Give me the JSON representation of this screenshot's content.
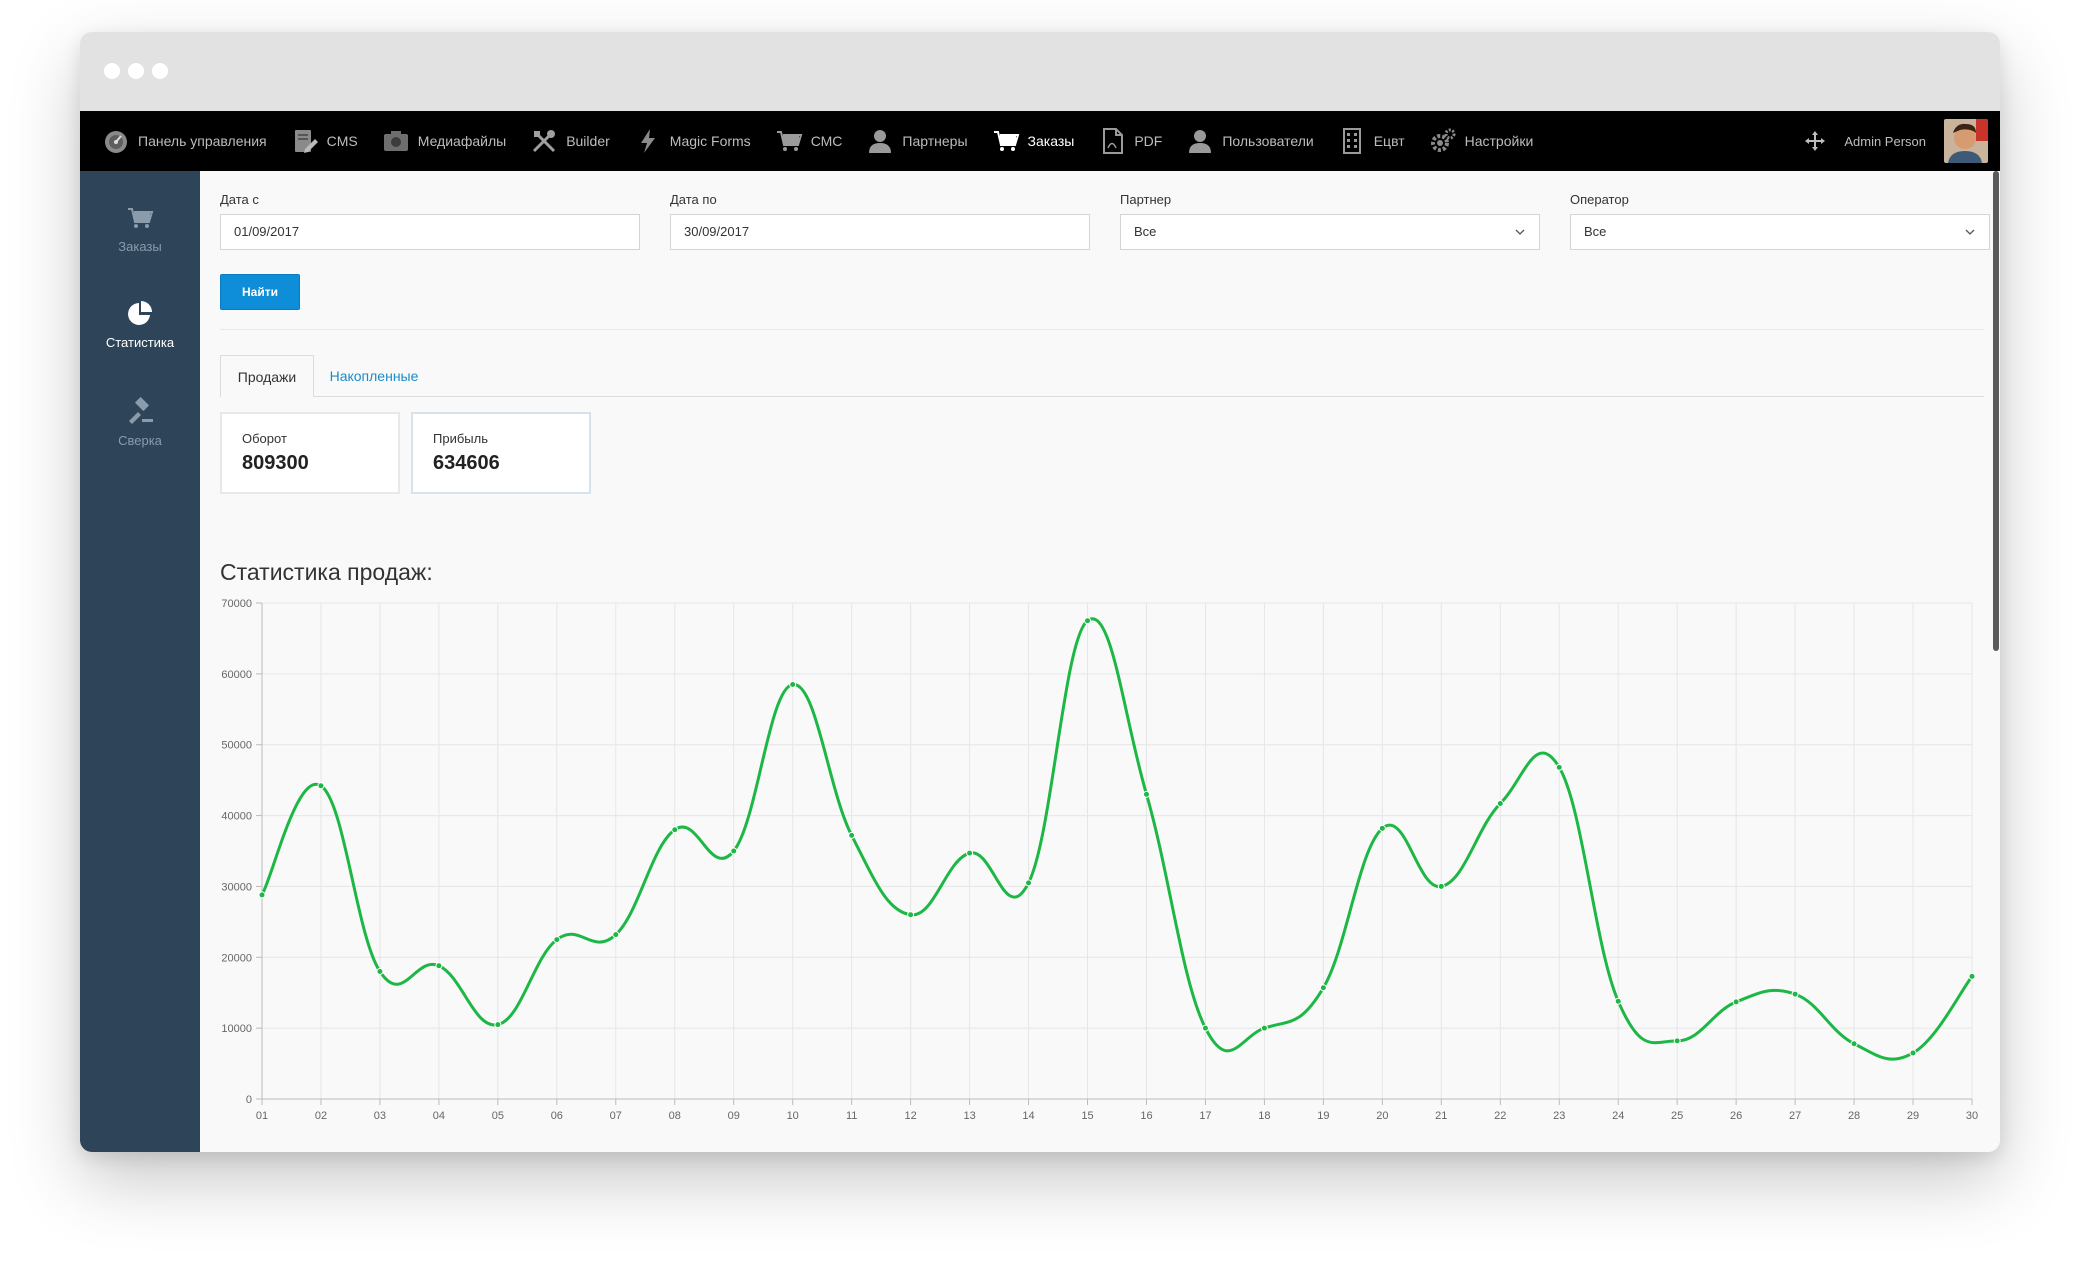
{
  "nav": {
    "items": [
      {
        "label": "Панель управления",
        "icon": "dashboard-gauge-icon",
        "active": false
      },
      {
        "label": "CMS",
        "icon": "cms-edit-icon",
        "active": false
      },
      {
        "label": "Медиафайлы",
        "icon": "media-camera-icon",
        "active": false
      },
      {
        "label": "Builder",
        "icon": "builder-tools-icon",
        "active": false
      },
      {
        "label": "Magic Forms",
        "icon": "lightning-icon",
        "active": false
      },
      {
        "label": "СМС",
        "icon": "cart-icon",
        "active": false
      },
      {
        "label": "Партнеры",
        "icon": "user-icon",
        "active": false
      },
      {
        "label": "Заказы",
        "icon": "cart-icon",
        "active": true
      },
      {
        "label": "PDF",
        "icon": "pdf-file-icon",
        "active": false
      },
      {
        "label": "Пользователи",
        "icon": "user-icon",
        "active": false
      },
      {
        "label": "Ецвт",
        "icon": "building-icon",
        "active": false
      },
      {
        "label": "Настройки",
        "icon": "gears-icon",
        "active": false
      }
    ],
    "user_name": "Admin Person"
  },
  "sidebar": {
    "items": [
      {
        "label": "Заказы",
        "icon": "cart-icon",
        "active": false
      },
      {
        "label": "Статистика",
        "icon": "pie-chart-icon",
        "active": true
      },
      {
        "label": "Сверка",
        "icon": "gavel-icon",
        "active": false
      }
    ]
  },
  "filters": {
    "date_from_label": "Дата с",
    "date_from_value": "01/09/2017",
    "date_to_label": "Дата по",
    "date_to_value": "30/09/2017",
    "partner_label": "Партнер",
    "partner_value": "Все",
    "operator_label": "Оператор",
    "operator_value": "Все",
    "find_button": "Найти"
  },
  "tabs": [
    {
      "label": "Продажи",
      "active": true
    },
    {
      "label": "Накопленные",
      "active": false
    }
  ],
  "stats": {
    "turnover_label": "Оборот",
    "turnover_value": "809300",
    "profit_label": "Прибыль",
    "profit_value": "634606"
  },
  "chart_title": "Статистика продаж:",
  "chart_data": {
    "type": "line",
    "categories": [
      "01",
      "02",
      "03",
      "04",
      "05",
      "06",
      "07",
      "08",
      "09",
      "10",
      "11",
      "12",
      "13",
      "14",
      "15",
      "16",
      "17",
      "18",
      "19",
      "20",
      "21",
      "22",
      "23",
      "24",
      "25",
      "26",
      "27",
      "28",
      "29",
      "30"
    ],
    "values": [
      28800,
      44200,
      18000,
      18800,
      10500,
      22500,
      23200,
      38000,
      35000,
      58500,
      37200,
      26000,
      34700,
      30500,
      67500,
      43000,
      10000,
      10000,
      15700,
      38200,
      30000,
      41700,
      46800,
      13800,
      8200,
      13700,
      14800,
      7800,
      6500,
      17300
    ],
    "ylim": [
      0,
      70000
    ],
    "yticks": [
      0,
      10000,
      20000,
      30000,
      40000,
      50000,
      60000,
      70000
    ],
    "color": "#1db745",
    "grid": true
  }
}
